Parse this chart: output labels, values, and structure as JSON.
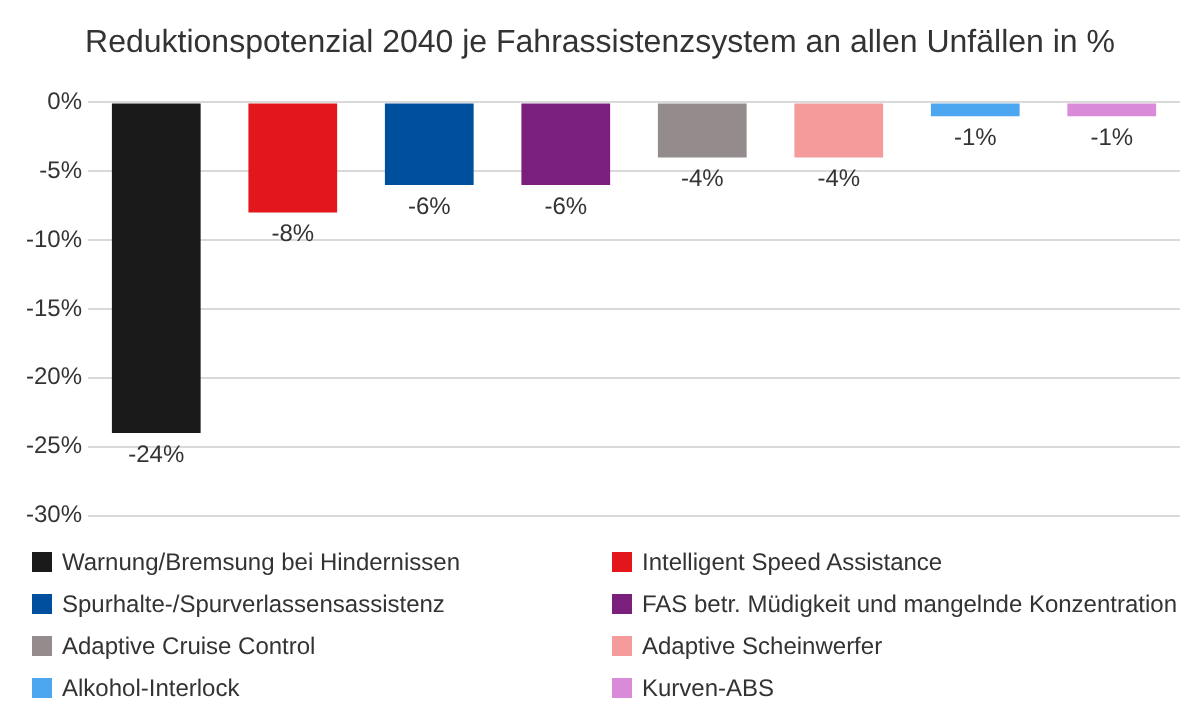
{
  "chart_data": {
    "type": "bar",
    "title": "Reduktionspotenzial 2040 je Fahrassistenzsystem an allen Unfällen in %",
    "categories": [
      null
    ],
    "series": [
      {
        "name": "Warnung/Bremsung bei Hindernissen",
        "color": "#1a1a1a",
        "values": [
          -24
        ],
        "value_labels": [
          "-24%"
        ]
      },
      {
        "name": "Intelligent Speed Assistance",
        "color": "#e3161b",
        "values": [
          -8
        ],
        "value_labels": [
          "-8%"
        ]
      },
      {
        "name": "Spurhalte-/Spurverlassensassistenz",
        "color": "#004f9f",
        "values": [
          -6
        ],
        "value_labels": [
          "-6%"
        ]
      },
      {
        "name": "FAS betr. Müdigkeit und mangelnde Konzentration",
        "color": "#7b1f7d",
        "values": [
          -6
        ],
        "value_labels": [
          "-6%"
        ]
      },
      {
        "name": "Adaptive Cruise Control",
        "color": "#948c8c",
        "values": [
          -4
        ],
        "value_labels": [
          "-4%"
        ]
      },
      {
        "name": "Adaptive Scheinwerfer",
        "color": "#f59b9b",
        "values": [
          -4
        ],
        "value_labels": [
          "-4%"
        ]
      },
      {
        "name": "Alkohol-Interlock",
        "color": "#4da6f0",
        "values": [
          -1
        ],
        "value_labels": [
          "-1%"
        ]
      },
      {
        "name": "Kurven-ABS",
        "color": "#d98ad9",
        "values": [
          -1
        ],
        "value_labels": [
          "-1%"
        ]
      }
    ],
    "ylim": [
      -30,
      0
    ],
    "yticks": [
      {
        "value": -30,
        "label": "-30%"
      },
      {
        "value": -25,
        "label": "-25%"
      },
      {
        "value": -20,
        "label": "-20%"
      },
      {
        "value": -15,
        "label": "-15%"
      },
      {
        "value": -10,
        "label": "-10%"
      },
      {
        "value": -5,
        "label": "-5%"
      },
      {
        "value": 0,
        "label": "0%"
      }
    ],
    "grid": "y",
    "legend": "bottom",
    "tick_labels": "y"
  }
}
